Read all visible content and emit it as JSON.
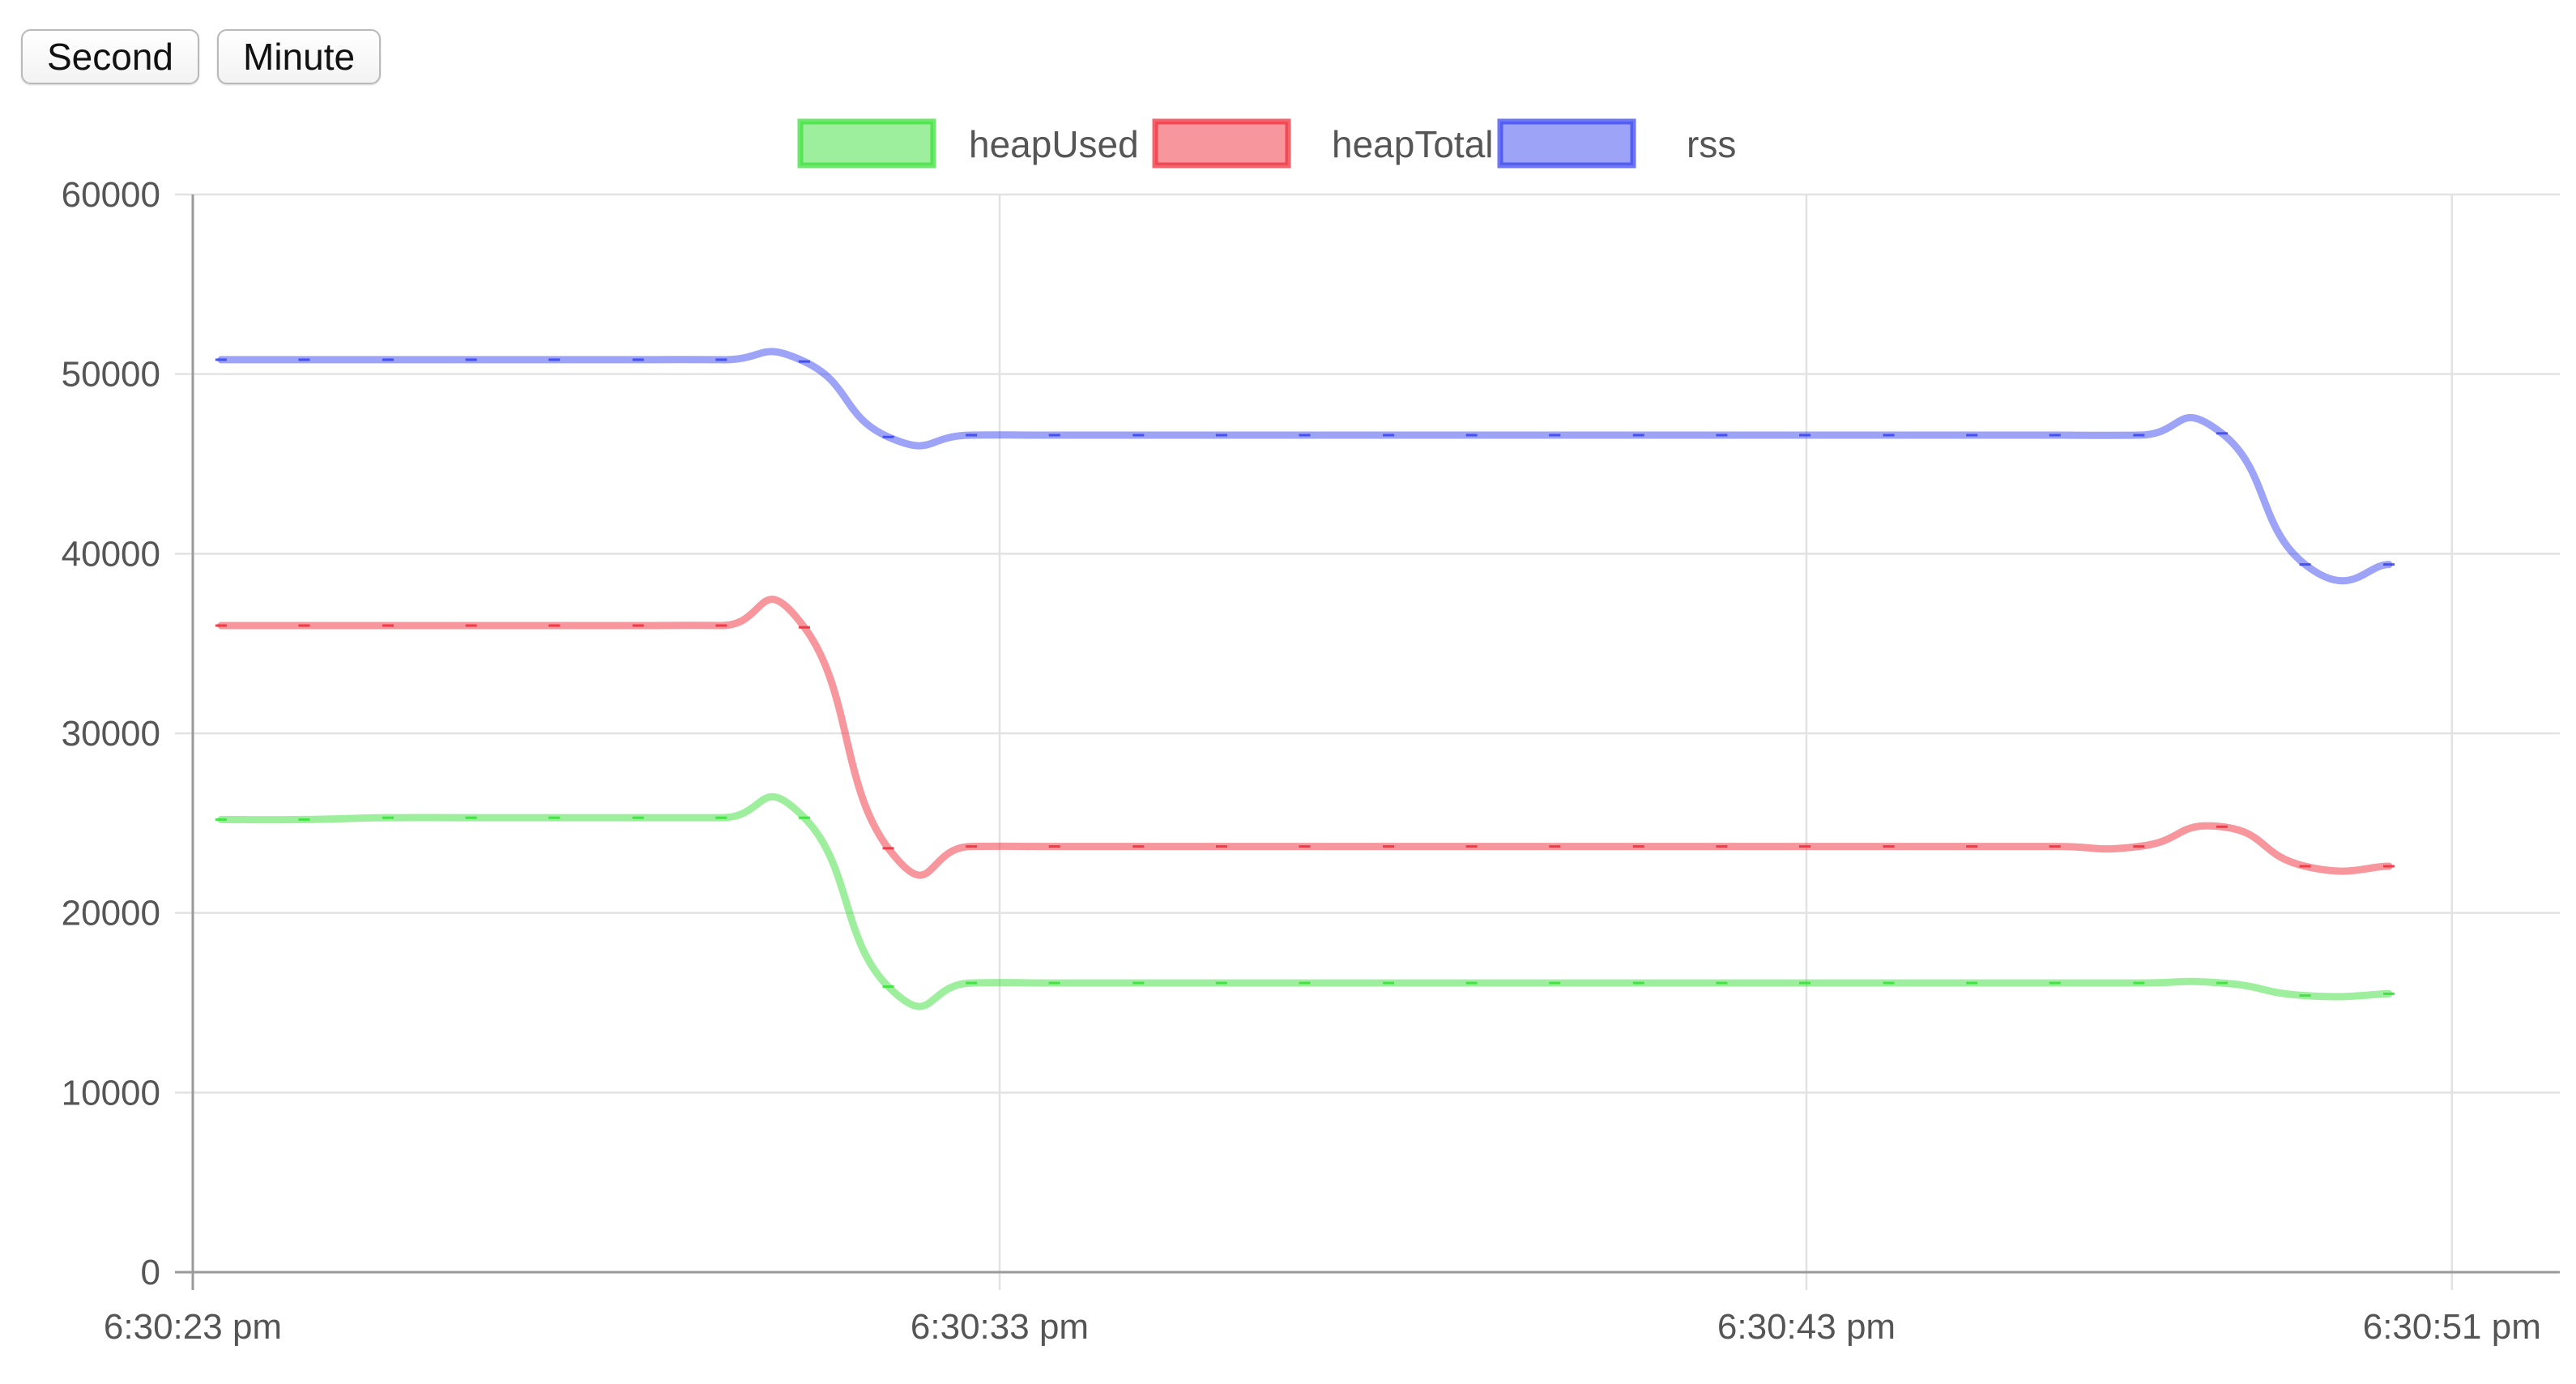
{
  "toolbar": {
    "second_label": "Second",
    "minute_label": "Minute"
  },
  "chart_data": {
    "type": "line",
    "title": "",
    "xlabel": "",
    "ylabel": "",
    "x_labels": [
      "6:30:23 pm",
      "6:30:33 pm",
      "6:30:43 pm",
      "6:30:51 pm"
    ],
    "x_label_seconds": [
      0,
      10,
      20,
      28
    ],
    "x": [
      0.35,
      1.38,
      2.42,
      3.45,
      4.48,
      5.52,
      6.55,
      7.58,
      8.62,
      9.65,
      10.68,
      11.72,
      12.75,
      13.78,
      14.82,
      15.85,
      16.88,
      17.92,
      18.95,
      19.98,
      21.02,
      22.05,
      23.08,
      24.12,
      25.15,
      26.18,
      27.22
    ],
    "ylim": [
      0,
      60000
    ],
    "y_ticks": [
      0,
      10000,
      20000,
      30000,
      40000,
      50000,
      60000
    ],
    "grid": true,
    "legend_position": "top",
    "series": [
      {
        "name": "heapUsed",
        "color": "#3ce03c",
        "values": [
          25200,
          25200,
          25300,
          25300,
          25300,
          25300,
          25300,
          25300,
          15900,
          16100,
          16100,
          16100,
          16100,
          16100,
          16100,
          16100,
          16100,
          16100,
          16100,
          16100,
          16100,
          16100,
          16100,
          16100,
          16100,
          15400,
          15500
        ]
      },
      {
        "name": "heapTotal",
        "color": "#f0303c",
        "values": [
          36000,
          36000,
          36000,
          36000,
          36000,
          36000,
          36000,
          35900,
          23600,
          23700,
          23700,
          23700,
          23700,
          23700,
          23700,
          23700,
          23700,
          23700,
          23700,
          23700,
          23700,
          23700,
          23700,
          23700,
          24800,
          22600,
          22600
        ]
      },
      {
        "name": "rss",
        "color": "#3c48f0",
        "values": [
          50800,
          50800,
          50800,
          50800,
          50800,
          50800,
          50800,
          50700,
          46500,
          46600,
          46600,
          46600,
          46600,
          46600,
          46600,
          46600,
          46600,
          46600,
          46600,
          46600,
          46600,
          46600,
          46600,
          46600,
          46700,
          39400,
          39400
        ]
      }
    ]
  }
}
